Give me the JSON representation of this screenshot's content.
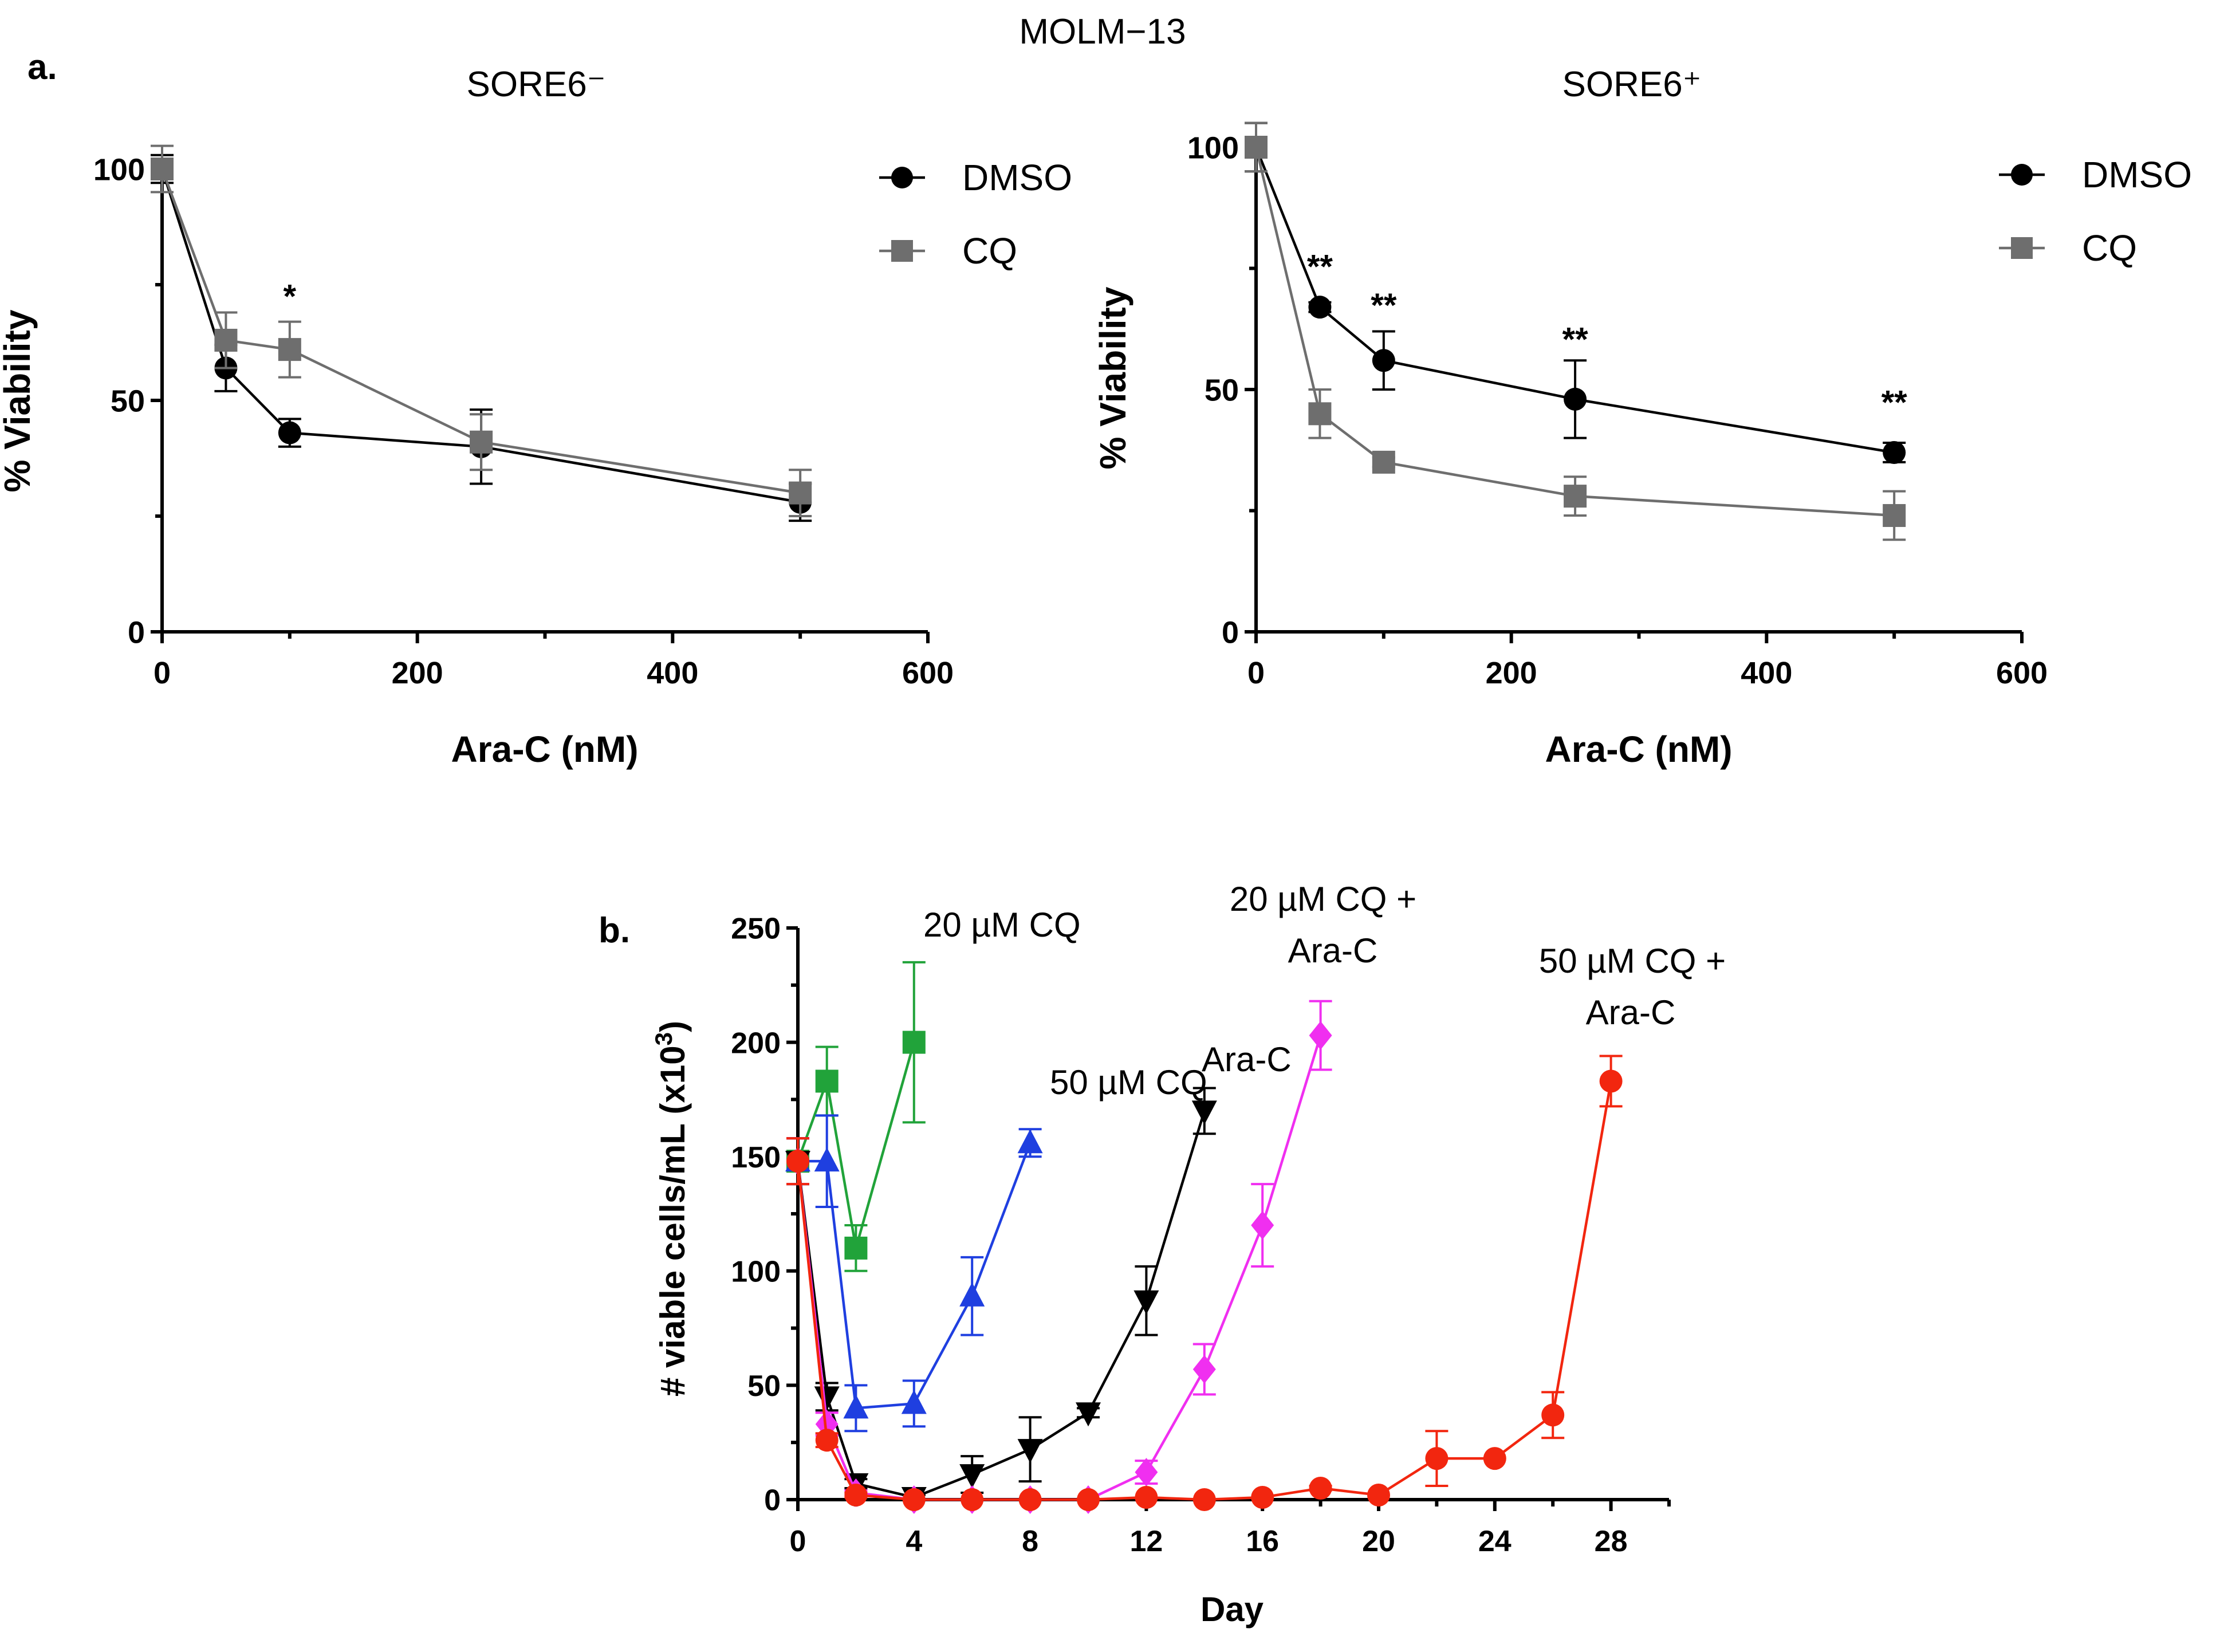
{
  "figure": {
    "title": "MOLM−13"
  },
  "chart_data": [
    {
      "id": "a-left",
      "panel_label": "a.",
      "type": "line",
      "title": "SORE6⁻",
      "xlabel": "Ara-C (nM)",
      "ylabel": "% Viability",
      "xlim": [
        0,
        600
      ],
      "ylim": [
        0,
        100
      ],
      "xticks": [
        0,
        200,
        400,
        600
      ],
      "yticks": [
        0,
        50,
        100
      ],
      "x": [
        0,
        50,
        100,
        250,
        500
      ],
      "legend_position": "top-right",
      "series": [
        {
          "name": "DMSO",
          "marker": "circle",
          "color": "#000000",
          "values": [
            100,
            57,
            43,
            40,
            28
          ],
          "errors": [
            3,
            5,
            3,
            8,
            4
          ]
        },
        {
          "name": "CQ",
          "marker": "square",
          "color": "#6e6e6e",
          "values": [
            100,
            63,
            61,
            41,
            30
          ],
          "errors": [
            5,
            6,
            6,
            6,
            5
          ]
        }
      ],
      "annotations": [
        {
          "text": "*",
          "x": 100,
          "y": 70
        }
      ]
    },
    {
      "id": "a-right",
      "panel_label": "",
      "type": "line",
      "title": "SORE6⁺",
      "xlabel": "Ara-C (nM)",
      "ylabel": "% Viability",
      "xlim": [
        0,
        600
      ],
      "ylim": [
        0,
        100
      ],
      "xticks": [
        0,
        200,
        400,
        600
      ],
      "yticks": [
        0,
        50,
        100
      ],
      "x": [
        0,
        50,
        100,
        250,
        500
      ],
      "legend_position": "top-right",
      "series": [
        {
          "name": "DMSO",
          "marker": "circle",
          "color": "#000000",
          "values": [
            100,
            67,
            56,
            48,
            37
          ],
          "errors": [
            5,
            1,
            6,
            8,
            2
          ]
        },
        {
          "name": "CQ",
          "marker": "square",
          "color": "#6e6e6e",
          "values": [
            100,
            45,
            35,
            28,
            24
          ],
          "errors": [
            5,
            5,
            1,
            4,
            5
          ]
        }
      ],
      "annotations": [
        {
          "text": "**",
          "x": 50,
          "y": 73
        },
        {
          "text": "**",
          "x": 100,
          "y": 65
        },
        {
          "text": "**",
          "x": 250,
          "y": 58
        },
        {
          "text": "**",
          "x": 500,
          "y": 45
        }
      ]
    },
    {
      "id": "b",
      "panel_label": "b.",
      "type": "line",
      "title": "",
      "xlabel": "Day",
      "ylabel": "# viable cells/mL (x10³)",
      "xlim": [
        0,
        30
      ],
      "ylim": [
        0,
        250
      ],
      "xticks": [
        0,
        4,
        8,
        12,
        16,
        20,
        24,
        28
      ],
      "yticks": [
        0,
        50,
        100,
        150,
        200,
        250
      ],
      "series": [
        {
          "name": "20 µM CQ",
          "marker": "square",
          "color": "#21a33a",
          "x": [
            0,
            1,
            2,
            4
          ],
          "values": [
            148,
            183,
            110,
            200
          ],
          "errors": [
            10,
            15,
            10,
            35
          ]
        },
        {
          "name": "50 µM CQ",
          "marker": "triangle-up",
          "color": "#1f3fe0",
          "x": [
            0,
            1,
            2,
            4,
            6,
            8
          ],
          "values": [
            148,
            148,
            40,
            42,
            89,
            156
          ],
          "errors": [
            10,
            20,
            10,
            10,
            17,
            6
          ]
        },
        {
          "name": "Ara-C",
          "marker": "triangle-down",
          "color": "#000000",
          "x": [
            0,
            1,
            2,
            4,
            6,
            8,
            10,
            12,
            14
          ],
          "values": [
            148,
            45,
            7,
            1,
            11,
            22,
            38,
            87,
            170
          ],
          "errors": [
            10,
            6,
            2,
            1,
            8,
            14,
            2,
            15,
            10
          ]
        },
        {
          "name": "20 µM CQ + Ara-C",
          "marker": "diamond",
          "color": "#f02ff0",
          "x": [
            0,
            1,
            2,
            4,
            6,
            8,
            10,
            12,
            14,
            16,
            18
          ],
          "values": [
            148,
            33,
            3,
            0,
            0,
            0,
            0,
            12,
            57,
            120,
            203
          ],
          "errors": [
            10,
            5,
            1,
            0,
            0,
            0,
            0,
            5,
            11,
            18,
            15
          ]
        },
        {
          "name": "50 µM CQ + Ara-C",
          "marker": "circle",
          "color": "#f2260f",
          "x": [
            0,
            1,
            2,
            4,
            6,
            8,
            10,
            12,
            14,
            16,
            18,
            20,
            22,
            24,
            26,
            28
          ],
          "values": [
            148,
            26,
            2,
            0,
            0,
            0,
            0,
            1,
            0,
            1,
            5,
            2,
            18,
            18,
            37,
            183
          ],
          "errors": [
            10,
            3,
            1,
            0,
            0,
            0,
            0,
            0,
            0,
            0,
            1,
            0,
            12,
            0,
            10,
            11
          ]
        }
      ],
      "labels": [
        {
          "lines": [
            "20 µM CQ"
          ],
          "color": "#21a33a"
        },
        {
          "lines": [
            "50 µM CQ"
          ],
          "color": "#1f3fe0"
        },
        {
          "lines": [
            "Ara-C"
          ],
          "color": "#000000"
        },
        {
          "lines": [
            "20 µM CQ +",
            "Ara-C"
          ],
          "color": "#f02ff0"
        },
        {
          "lines": [
            "50 µM CQ +",
            "Ara-C"
          ],
          "color": "#f2260f"
        }
      ]
    }
  ]
}
